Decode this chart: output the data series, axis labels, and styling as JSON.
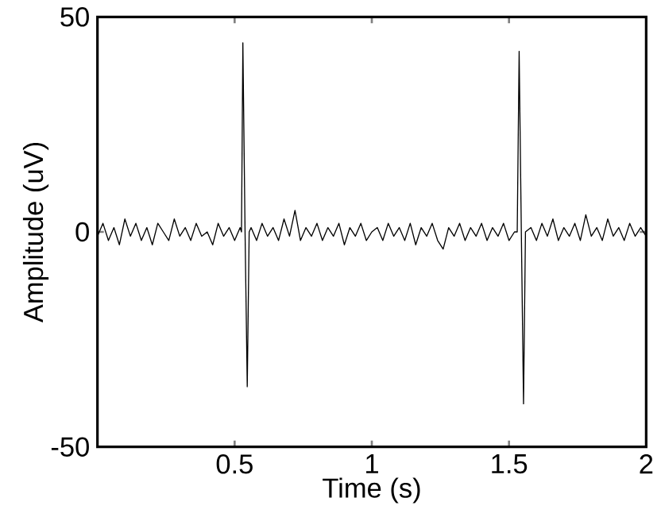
{
  "chart_data": {
    "type": "line",
    "xlabel": "Time (s)",
    "ylabel": "Amplitude (uV)",
    "xlim": [
      0,
      2
    ],
    "ylim": [
      -50,
      50
    ],
    "xticks": [
      0.5,
      1,
      1.5,
      2
    ],
    "yticks": [
      -50,
      0,
      50
    ],
    "series": [
      {
        "color": "#000000",
        "x": [
          0,
          0.02,
          0.04,
          0.06,
          0.08,
          0.1,
          0.12,
          0.14,
          0.16,
          0.18,
          0.2,
          0.22,
          0.24,
          0.26,
          0.28,
          0.3,
          0.32,
          0.34,
          0.36,
          0.38,
          0.4,
          0.42,
          0.44,
          0.46,
          0.48,
          0.5,
          0.52,
          0.525,
          0.53,
          0.538,
          0.546,
          0.553,
          0.56,
          0.58,
          0.6,
          0.62,
          0.64,
          0.66,
          0.68,
          0.7,
          0.72,
          0.74,
          0.76,
          0.78,
          0.8,
          0.82,
          0.84,
          0.86,
          0.88,
          0.9,
          0.92,
          0.94,
          0.96,
          0.98,
          1,
          1.02,
          1.04,
          1.06,
          1.08,
          1.1,
          1.12,
          1.14,
          1.16,
          1.18,
          1.2,
          1.22,
          1.24,
          1.26,
          1.28,
          1.3,
          1.32,
          1.34,
          1.36,
          1.38,
          1.4,
          1.42,
          1.44,
          1.46,
          1.48,
          1.5,
          1.52,
          1.53,
          1.537,
          1.545,
          1.553,
          1.56,
          1.58,
          1.6,
          1.62,
          1.64,
          1.66,
          1.68,
          1.7,
          1.72,
          1.74,
          1.76,
          1.78,
          1.8,
          1.82,
          1.84,
          1.86,
          1.88,
          1.9,
          1.92,
          1.94,
          1.96,
          1.98,
          2
        ],
        "values": [
          -1,
          2,
          -2,
          1,
          -3,
          3,
          -1,
          2,
          -2,
          1,
          -3,
          2,
          0,
          -2,
          3,
          -1,
          1,
          -2,
          2,
          -1,
          0,
          -3,
          2,
          -1,
          1,
          -2,
          1,
          0,
          44,
          0,
          -36,
          0,
          1,
          -2,
          2,
          -1,
          1,
          -2,
          3,
          -1,
          5,
          -2,
          1,
          -1,
          2,
          -2,
          1,
          -1,
          2,
          -3,
          1,
          -1,
          2,
          -2,
          0,
          1,
          -2,
          2,
          -1,
          1,
          -2,
          2,
          -3,
          1,
          -1,
          2,
          -2,
          -4,
          1,
          -1,
          2,
          -2,
          1,
          -1,
          2,
          -2,
          1,
          -1,
          2,
          -2,
          0,
          0,
          42,
          0,
          -40,
          0,
          1,
          -2,
          2,
          -1,
          3,
          -2,
          1,
          -1,
          2,
          -2,
          4,
          -1,
          1,
          -2,
          3,
          -1,
          1,
          -2,
          2,
          -1,
          1,
          -1
        ]
      }
    ]
  }
}
